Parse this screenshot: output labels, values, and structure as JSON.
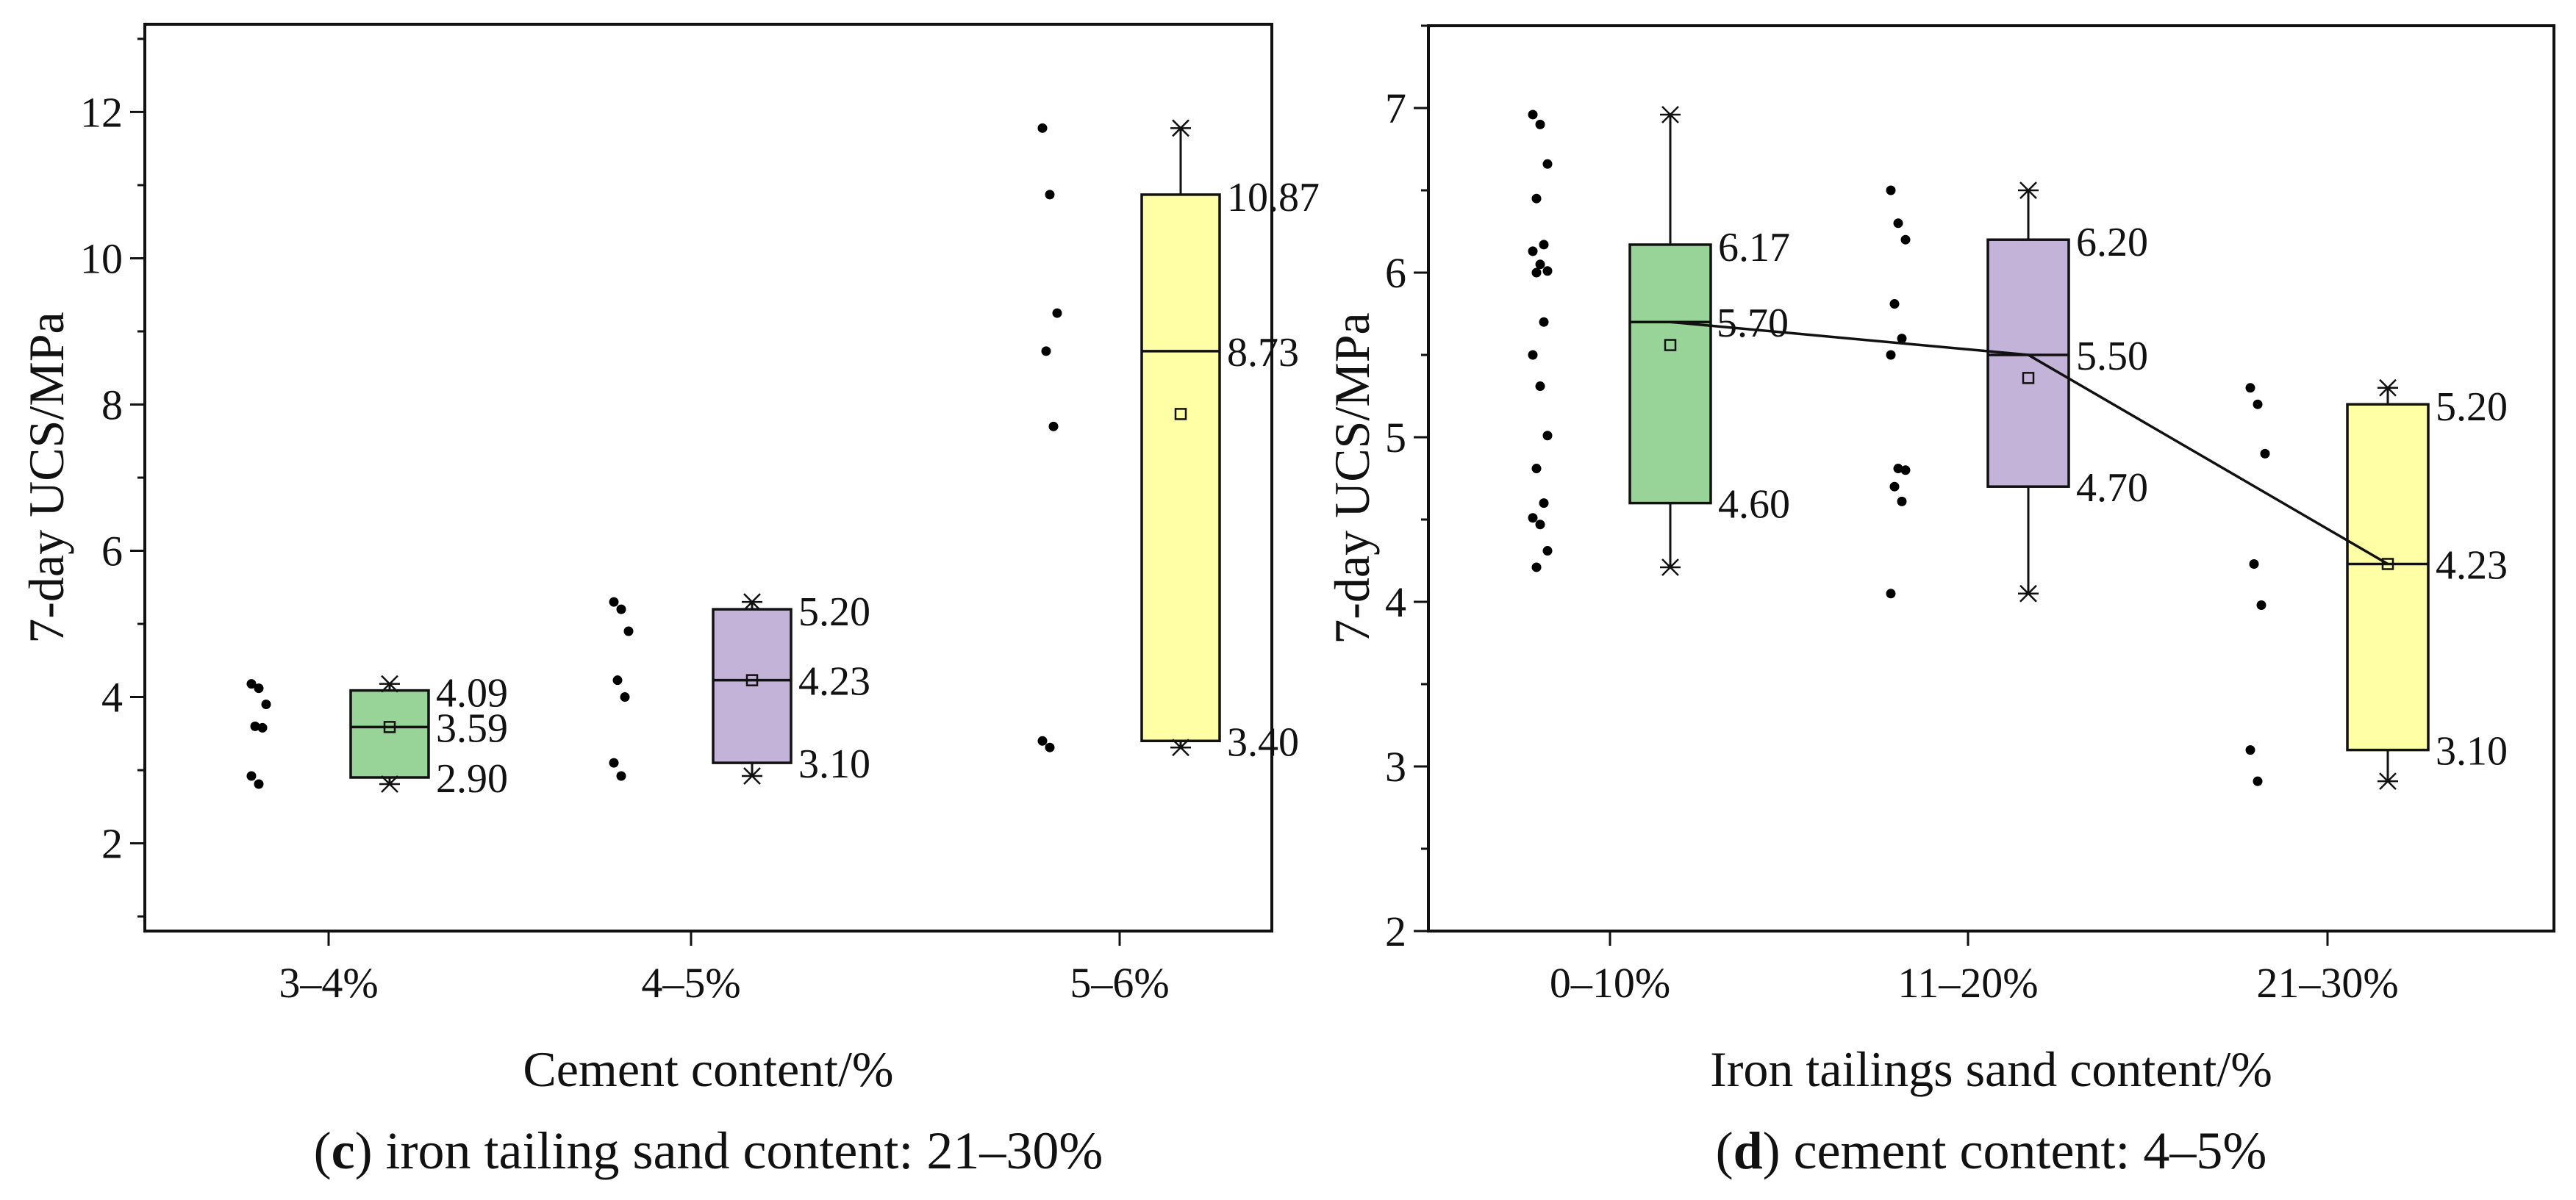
{
  "chart_data": [
    {
      "id": "c",
      "type": "box",
      "caption_letter": "c",
      "caption_text": "iron tailing sand content: 21–30%",
      "xlabel": "Cement content/%",
      "ylabel": "7-day UCS/MPa",
      "ylim": [
        0.8,
        13.2
      ],
      "yticks": [
        2,
        4,
        6,
        8,
        10,
        12
      ],
      "ytick_labels": [
        "2",
        "4",
        "6",
        "8",
        "10",
        "12"
      ],
      "minor_step": 1,
      "show_mean_line": false,
      "categories": [
        "3–4%",
        "4–5%",
        "5–6%"
      ],
      "boxes": [
        {
          "category": "3–4%",
          "color": "#98d498",
          "q1": 2.9,
          "median": 3.59,
          "q3": 4.09,
          "mean": 3.59,
          "whisker_low": 2.81,
          "whisker_high": 4.18,
          "labels": {
            "q3": "4.09",
            "median": "3.59",
            "q1": "2.90"
          },
          "points": [
            4.18,
            4.12,
            3.9,
            3.6,
            3.58,
            2.92,
            2.81
          ]
        },
        {
          "category": "4–5%",
          "color": "#c3b3d8",
          "q1": 3.1,
          "median": 4.23,
          "q3": 5.2,
          "mean": 4.23,
          "whisker_low": 2.92,
          "whisker_high": 5.3,
          "labels": {
            "q3": "5.20",
            "median": "4.23",
            "q1": "3.10"
          },
          "points": [
            5.3,
            5.2,
            4.9,
            4.23,
            4.0,
            3.1,
            2.92
          ]
        },
        {
          "category": "5–6%",
          "color": "#ffffa6",
          "q1": 3.4,
          "median": 8.73,
          "q3": 10.87,
          "mean": 7.87,
          "whisker_low": 3.31,
          "whisker_high": 11.78,
          "labels": {
            "q3": "10.87",
            "median": "8.73",
            "q1": "3.40"
          },
          "points": [
            11.78,
            10.87,
            9.25,
            8.73,
            7.7,
            3.4,
            3.31
          ]
        }
      ]
    },
    {
      "id": "d",
      "type": "box",
      "caption_letter": "d",
      "caption_text": "cement content: 4–5%",
      "xlabel": "Iron tailings sand content/%",
      "ylabel": "7-day UCS/MPa",
      "ylim": [
        2.0,
        7.5
      ],
      "yticks": [
        2,
        3,
        4,
        5,
        6,
        7
      ],
      "ytick_labels": [
        "2",
        "3",
        "4",
        "5",
        "6",
        "7"
      ],
      "minor_step": 0.5,
      "show_mean_line": true,
      "mean_line_label": "5.70",
      "categories": [
        "0–10%",
        "11–20%",
        "21–30%"
      ],
      "boxes": [
        {
          "category": "0–10%",
          "color": "#98d498",
          "q1": 4.6,
          "median": 5.7,
          "q3": 6.17,
          "mean": 5.56,
          "whisker_low": 4.21,
          "whisker_high": 6.96,
          "labels": {
            "q3": "6.17",
            "median": "",
            "q1": "4.60"
          },
          "points": [
            6.96,
            6.9,
            6.66,
            6.45,
            6.17,
            6.13,
            6.05,
            6.01,
            6.0,
            5.7,
            5.5,
            5.31,
            5.01,
            4.81,
            4.6,
            4.51,
            4.47,
            4.31,
            4.21
          ]
        },
        {
          "category": "11–20%",
          "color": "#c3b3d8",
          "q1": 4.7,
          "median": 5.5,
          "q3": 6.2,
          "mean": 5.36,
          "whisker_low": 4.05,
          "whisker_high": 6.5,
          "labels": {
            "q3": "6.20",
            "median": "5.50",
            "q1": "4.70"
          },
          "points": [
            6.5,
            6.3,
            6.2,
            5.81,
            5.6,
            5.5,
            4.81,
            4.8,
            4.7,
            4.61,
            4.05
          ]
        },
        {
          "category": "21–30%",
          "color": "#ffffa6",
          "q1": 3.1,
          "median": 4.23,
          "q3": 5.2,
          "mean": 4.23,
          "whisker_low": 2.91,
          "whisker_high": 5.3,
          "labels": {
            "q3": "5.20",
            "median": "4.23",
            "q1": "3.10"
          },
          "points": [
            5.3,
            5.2,
            4.9,
            4.23,
            3.98,
            3.1,
            2.91
          ]
        }
      ]
    }
  ]
}
